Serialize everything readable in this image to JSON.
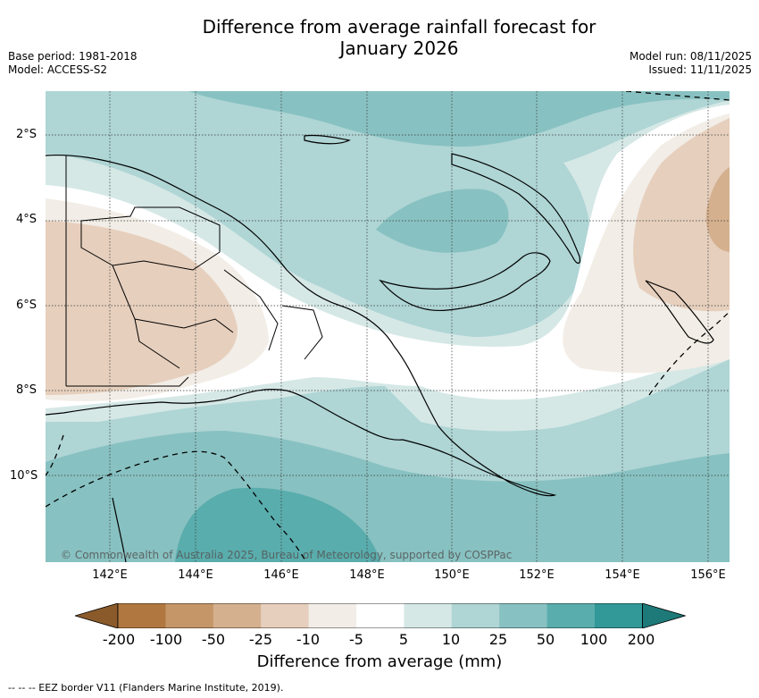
{
  "title": "Difference from average rainfall forecast for\nJanuary 2026",
  "meta_left": {
    "base_period": "Base period: 1981-2018",
    "model": "Model: ACCESS-S2"
  },
  "meta_right": {
    "model_run": "Model run: 08/11/2025",
    "issued": "Issued: 11/11/2025"
  },
  "map": {
    "latitude_labels": [
      "2°S",
      "4°S",
      "6°S",
      "8°S",
      "10°S"
    ],
    "longitude_labels": [
      "142°E",
      "144°E",
      "146°E",
      "148°E",
      "150°E",
      "152°E",
      "154°E",
      "156°E"
    ],
    "copyright": "© Commonwealth of Australia 2025, Bureau of Meteorology, supported by COSPPac",
    "regions": [
      {
        "name": "sea-north",
        "category": "25 to 50"
      },
      {
        "name": "bismarck-sea",
        "category": "10 to 25"
      },
      {
        "name": "new-ireland-east",
        "category": "-25 to -10"
      },
      {
        "name": "western-png",
        "category": "-25 to -10"
      },
      {
        "name": "coral-sea",
        "category": "50 to 100"
      }
    ]
  },
  "colorbar": {
    "title": "Difference from average (mm)",
    "ticks": [
      "-200",
      "-100",
      "-50",
      "-25",
      "-10",
      "-5",
      "5",
      "10",
      "25",
      "50",
      "100",
      "200"
    ],
    "colors": [
      "#8b5a2b",
      "#b07840",
      "#c49668",
      "#d4b08e",
      "#e6cfbd",
      "#f2ede6",
      "#ffffff",
      "#d5e8e6",
      "#afd5d5",
      "#88c1c1",
      "#5aadad",
      "#329898",
      "#1e7a78"
    ]
  },
  "footnote": "--  --  -- EEZ border V11 (Flanders Marine Institute, 2019)."
}
